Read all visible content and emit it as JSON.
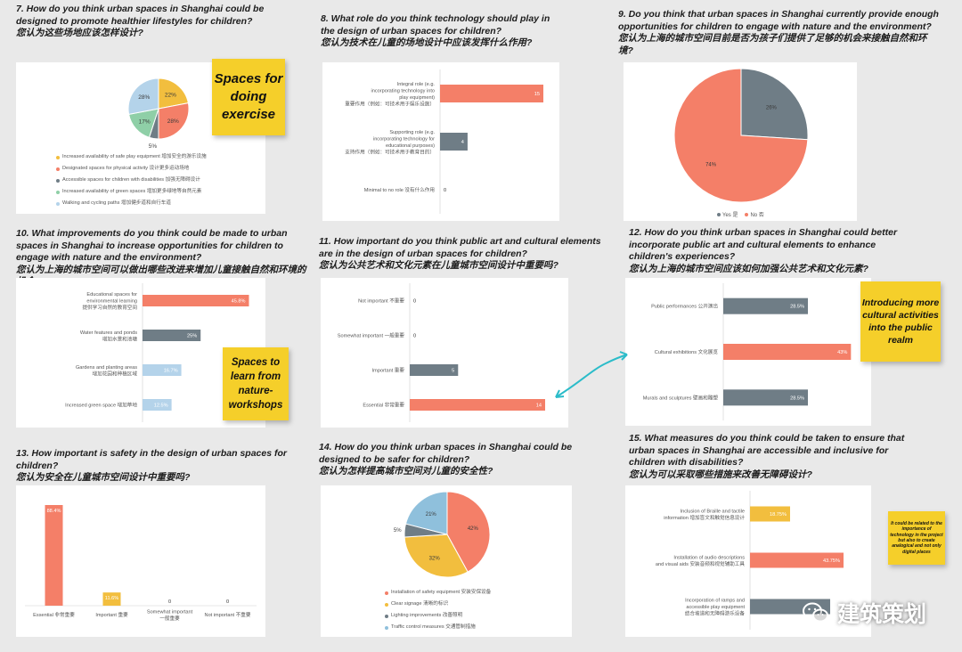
{
  "colors": {
    "salmon": "#f47f68",
    "yellow": "#f2be3e",
    "slate": "#6f7d86",
    "lightblue": "#b4d3ea",
    "green": "#8fcfa7",
    "teal": "#2bbcc9"
  },
  "questions": {
    "q7": {
      "en": "7. How do you think urban spaces in Shanghai could be designed to promote healthier lifestyles for children?",
      "cn": "您认为这些场地应该怎样设计?"
    },
    "q8": {
      "en": "8. What role do you think technology should play in the design of urban spaces for children?",
      "cn": "您认为技术在儿童的场地设计中应该发挥什么作用?"
    },
    "q9": {
      "en": "9. Do you think that urban spaces in Shanghai currently provide enough opportunities for children to engage with nature and the environment?",
      "cn": "您认为上海的城市空间目前是否为孩子们提供了足够的机会来接触自然和环境?"
    },
    "q10": {
      "en": "10. What improvements do you think could be made to urban spaces in Shanghai to increase opportunities for children to engage with nature and the environment?",
      "cn": "您认为上海的城市空间可以做出哪些改进来增加儿童接触自然和环境的机会?"
    },
    "q11": {
      "en": "11. How important do you think public art and cultural elements are in the design of urban spaces for children?",
      "cn": "您认为公共艺术和文化元素在儿童城市空间设计中重要吗?"
    },
    "q12": {
      "en": "12. How do you think urban spaces in Shanghai could better incorporate public art and cultural elements to enhance children's experiences?",
      "cn": "您认为上海的城市空间应该如何加强公共艺术和文化元素?"
    },
    "q13": {
      "en": "13. How important is safety in the design of urban spaces for children?",
      "cn": "您认为安全在儿童城市空间设计中重要吗?"
    },
    "q14": {
      "en": "14. How do you think urban spaces in Shanghai could be designed to be safer for children?",
      "cn": "您认为怎样提高城市空间对儿童的安全性?"
    },
    "q15": {
      "en": "15. What measures do you think could be taken to ensure that urban spaces in Shanghai are accessible and inclusive for children with disabilities?",
      "cn": "您认为可以采取哪些措施来改善无障碍设计?"
    }
  },
  "notes": {
    "exercise": "Spaces for doing exercise",
    "nature": "Spaces to learn from nature-workshops",
    "cultural": "Introducing more cultural activities into the public realm",
    "tech": "It could be related to the importance of technology in the project but also to create analogical and not only digital places"
  },
  "watermark": "建筑策划",
  "chart_data": [
    {
      "id": "q7",
      "type": "pie",
      "slices": [
        {
          "label": "Increased availability of safe play equipment 增加安全的游乐设施",
          "value": 22,
          "text": "22%",
          "color": "#f2be3e"
        },
        {
          "label": "Designated spaces for physical activity 设计更多运动场地",
          "value": 28,
          "text": "28%",
          "color": "#f47f68"
        },
        {
          "label": "Accessible spaces for children with disabilities 加强无障碍设计",
          "value": 5,
          "text": "5%",
          "color": "#6f7d86"
        },
        {
          "label": "Increased availability of green spaces 增加更多绿地等自然元素",
          "value": 17,
          "text": "17%",
          "color": "#8fcfa7"
        },
        {
          "label": "Walking and cycling paths 增加健步道和自行车道",
          "value": 28,
          "text": "28%",
          "color": "#b4d3ea"
        }
      ]
    },
    {
      "id": "q8",
      "type": "bar",
      "orientation": "horizontal",
      "xlim": [
        0,
        15
      ],
      "categories": [
        "Integral role (e.g. incorporating technology into play equipment) 重要作用（例如：可技术用于娱乐设施）",
        "Supporting role (e.g. incorporating technology for educational purposes) 支持作用（例如：可技术用于教育目的）",
        "Minimal to no role 没有什么作用"
      ],
      "values": [
        15,
        4,
        0
      ],
      "labels": [
        "15",
        "4",
        "0"
      ],
      "colors": [
        "#f47f68",
        "#6f7d86",
        "#6f7d86"
      ]
    },
    {
      "id": "q9",
      "type": "pie",
      "slices": [
        {
          "label": "Yes 是",
          "value": 26,
          "text": "26%",
          "color": "#6f7d86"
        },
        {
          "label": "No 否",
          "value": 74,
          "text": "74%",
          "color": "#f47f68"
        }
      ]
    },
    {
      "id": "q10",
      "type": "bar",
      "orientation": "horizontal",
      "xlim": [
        0,
        46
      ],
      "categories": [
        "Educational spaces for environmental learning 提供学习自然的教育空间",
        "Water features and ponds 增加水景和池塘",
        "Gardens and planting areas 增加花园和种植区域",
        "Increased green space 增加草地"
      ],
      "values": [
        45.8,
        25,
        16.7,
        12.5
      ],
      "labels": [
        "45.8%",
        "25%",
        "16.7%",
        "12.5%"
      ],
      "colors": [
        "#f47f68",
        "#6f7d86",
        "#b4d3ea",
        "#b4d3ea"
      ]
    },
    {
      "id": "q11",
      "type": "bar",
      "orientation": "horizontal",
      "xlim": [
        0,
        14
      ],
      "categories": [
        "Not important 不重要",
        "Somewhat important 一般重要",
        "Important 重要",
        "Essential 非常重要"
      ],
      "values": [
        0,
        0,
        5,
        14
      ],
      "labels": [
        "0",
        "0",
        "5",
        "14"
      ],
      "colors": [
        "#6f7d86",
        "#6f7d86",
        "#6f7d86",
        "#f47f68"
      ]
    },
    {
      "id": "q12",
      "type": "bar",
      "orientation": "horizontal",
      "xlim": [
        0,
        45
      ],
      "categories": [
        "Public performances 公开演出",
        "Cultural exhibitions 文化展览",
        "Murals and sculptures 壁画和雕塑"
      ],
      "values": [
        28.5,
        43,
        28.5
      ],
      "labels": [
        "28.5%",
        "43%",
        "28.5%"
      ],
      "colors": [
        "#6f7d86",
        "#f47f68",
        "#6f7d86"
      ]
    },
    {
      "id": "q13",
      "type": "bar",
      "orientation": "vertical",
      "ylim": [
        0,
        88.4
      ],
      "categories": [
        "Essential 非常重要",
        "Important 重要",
        "Somewhat important 一般重要",
        "Not important 不重要"
      ],
      "values": [
        88.4,
        11.6,
        0,
        0
      ],
      "labels": [
        "88.4%",
        "11.6%",
        "0",
        "0"
      ],
      "colors": [
        "#f47f68",
        "#f2be3e",
        "#6f7d86",
        "#6f7d86"
      ]
    },
    {
      "id": "q14",
      "type": "pie",
      "slices": [
        {
          "label": "Installation of safety equipment 安装安保设备",
          "value": 42,
          "text": "42%",
          "color": "#f47f68"
        },
        {
          "label": "Clear signage 清晰的标识",
          "value": 32,
          "text": "32%",
          "color": "#f2be3e"
        },
        {
          "label": "Lighting improvements 改善照明",
          "value": 5,
          "text": "5%",
          "color": "#6f7d86"
        },
        {
          "label": "Traffic control measures 交通管制措施",
          "value": 21,
          "text": "21%",
          "color": "#8fc0dc"
        }
      ]
    },
    {
      "id": "q15",
      "type": "bar",
      "orientation": "horizontal",
      "xlim": [
        0,
        50
      ],
      "categories": [
        "Inclusion of Braille and tactile information 增加盲文和触觉信息设计",
        "Installation of audio descriptions and visual aids 安装音频和视觉辅助工具",
        "Incorporation of ramps and accessible play equipment 结合坡道和无障碍游乐设备"
      ],
      "values": [
        18.75,
        43.75,
        37.5
      ],
      "labels": [
        "18.75%",
        "43.75%",
        ""
      ],
      "colors": [
        "#f2be3e",
        "#f47f68",
        "#6f7d86"
      ]
    }
  ]
}
